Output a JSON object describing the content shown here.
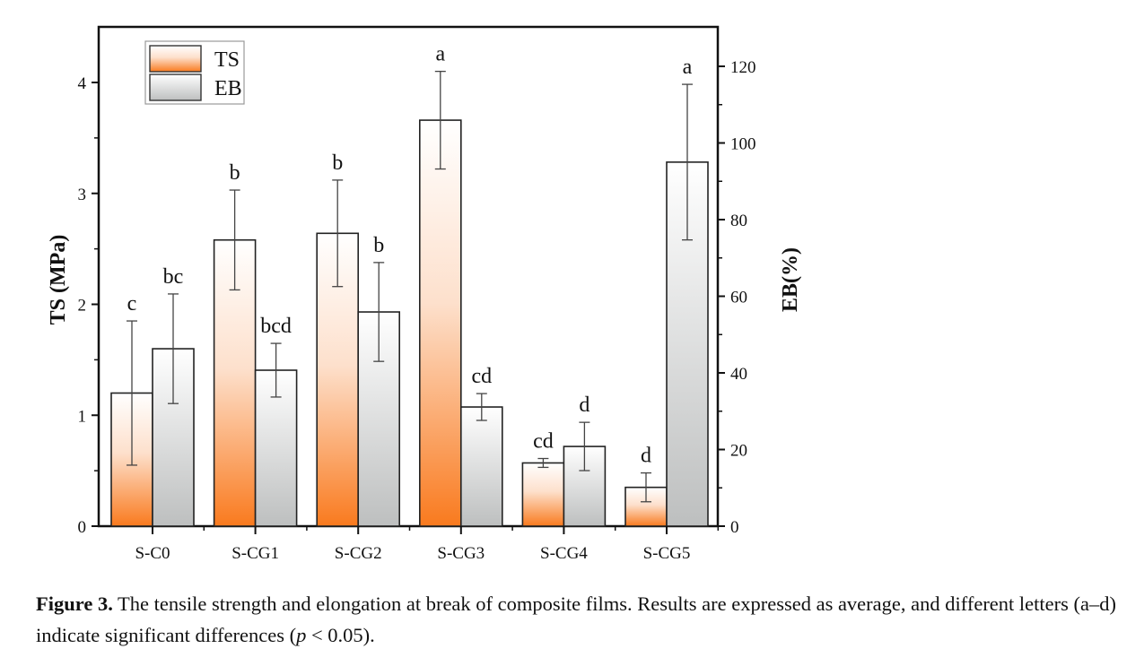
{
  "chart_data": {
    "type": "bar",
    "categories": [
      "S-C0",
      "S-CG1",
      "S-CG2",
      "S-CG3",
      "S-CG4",
      "S-CG5"
    ],
    "series": [
      {
        "name": "TS",
        "axis": "left",
        "values": [
          1.2,
          2.58,
          2.64,
          3.66,
          0.57,
          0.35
        ],
        "errors": [
          0.65,
          0.45,
          0.48,
          0.44,
          0.04,
          0.13
        ],
        "letters": [
          "c",
          "b",
          "b",
          "a",
          "cd",
          "d"
        ],
        "color_bottom": "#f97a1e",
        "color_top": "#ffffff"
      },
      {
        "name": "EB",
        "axis": "right",
        "values": [
          46.3,
          40.7,
          55.9,
          31.1,
          20.8,
          95.0
        ],
        "errors": [
          14.3,
          7.0,
          12.9,
          3.5,
          6.3,
          20.3
        ],
        "letters": [
          "bc",
          "bcd",
          "b",
          "cd",
          "d",
          "a"
        ],
        "color_bottom": "#bdbfbf",
        "color_top": "#ffffff"
      }
    ],
    "ylabel": "TS (MPa)",
    "ylabel_right": "EB(%)",
    "ylim": [
      0,
      4.5
    ],
    "ylim_right": [
      0,
      130
    ],
    "yticks": [
      "0",
      "1",
      "2",
      "3",
      "4"
    ],
    "yticks_right": [
      "0",
      "20",
      "40",
      "60",
      "80",
      "100",
      "120"
    ],
    "grid": false,
    "legend": "top-left"
  },
  "caption": {
    "label": "Figure 3.",
    "text_1": " The tensile strength and elongation at break of composite films. Results are expressed as average, and different letters (a–d) indicate significant differences (",
    "p": "p",
    "text_2": " < 0.05)."
  }
}
